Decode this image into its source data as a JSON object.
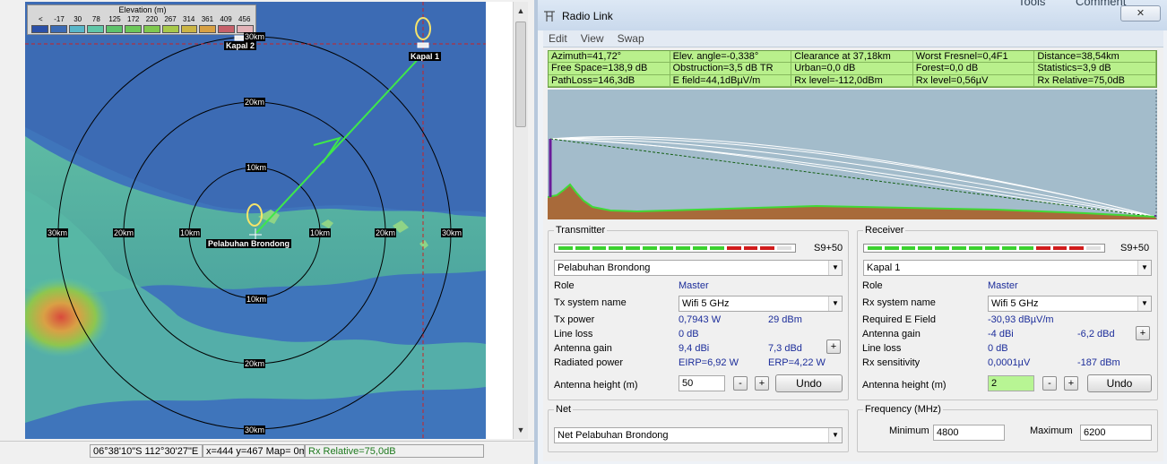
{
  "map": {
    "legend": {
      "title": "Elevation (m)",
      "ticks": [
        "<",
        "-17",
        "30",
        "78",
        "125",
        "172",
        "220",
        "267",
        "314",
        "361",
        "409",
        "456"
      ],
      "colors": [
        "#2b50a8",
        "#3c6bb4",
        "#58b7c9",
        "#5fc7a8",
        "#5dc36b",
        "#6cc859",
        "#7fc94e",
        "#a7c94a",
        "#cbb545",
        "#d8a043",
        "#c7606a",
        "#e4b3b8"
      ]
    },
    "range_labels": {
      "top_30": "30km",
      "top_20": "20km",
      "top_10": "10km",
      "bottom_10": "10km",
      "bottom_20": "20km",
      "bottom_30": "30km",
      "left_30": "30km",
      "left_20": "20km",
      "left_10": "10km",
      "right_10": "10km",
      "right_20": "20km",
      "right_30": "30km"
    },
    "stations": {
      "tx": "Pelabuhan Brondong",
      "rx": "Kapal 1",
      "other": "Kapal 2"
    },
    "colors": {
      "sea": "#3c6bb4",
      "link": "#3ee84a",
      "crosshair": "#cc2222"
    }
  },
  "status_bar": {
    "coords": "06°38'10\"S  112°30'27\"E",
    "xy": "x=444 y=467 Map= 0m",
    "rx_relative": "Rx Relative=75,0dB"
  },
  "background_text": {
    "tools": "Tools",
    "comment": "Comment"
  },
  "window": {
    "title": "Radio Link",
    "close": "✕",
    "menu": [
      "Edit",
      "View",
      "Swap"
    ]
  },
  "info": [
    "Azimuth=41,72°",
    "Elev. angle=-0,338°",
    "Clearance at 37,18km",
    "Worst Fresnel=0,4F1",
    "Distance=38,54km",
    "Free Space=138,9 dB",
    "Obstruction=3,5 dB TR",
    "Urban=0,0 dB",
    "Forest=0,0 dB",
    "Statistics=3,9 dB",
    "PathLoss=146,3dB",
    "E field=44,1dBµV/m",
    "Rx level=-112,0dBm",
    "Rx level=0,56µV",
    "Rx Relative=75,0dB"
  ],
  "profile_colors": {
    "sky": "#a3bccb",
    "terrain": "#a86a3a",
    "edge": "#41d936",
    "fresnel": "#ffffff",
    "los": "#145f14",
    "antenna": "#6a1b9a"
  },
  "transmitter": {
    "title": "Transmitter",
    "signal": "S9+50",
    "signal_level": 0.92,
    "site": "Pelabuhan Brondong",
    "rows": {
      "role_label": "Role",
      "role_value": "Master",
      "system_label": "Tx system name",
      "system_value": "Wifi 5 GHz",
      "power_label": "Tx power",
      "power_w": "0,7943 W",
      "power_dbm": "29 dBm",
      "loss_label": "Line loss",
      "loss_value": "0 dB",
      "gain_label": "Antenna gain",
      "gain_dbi": "9,4 dBi",
      "gain_dbd": "7,3 dBd",
      "radiated_label": "Radiated power",
      "eirp": "EIRP=6,92 W",
      "erp": "ERP=4,22 W",
      "height_label": "Antenna height (m)",
      "height_value": "50"
    },
    "plus": "+",
    "minus": "-",
    "undo": "Undo"
  },
  "receiver": {
    "title": "Receiver",
    "signal": "S9+50",
    "signal_level": 0.92,
    "site": "Kapal 1",
    "rows": {
      "role_label": "Role",
      "role_value": "Master",
      "system_label": "Rx system name",
      "system_value": "Wifi 5 GHz",
      "field_label": "Required E Field",
      "field_value": "-30,93 dBµV/m",
      "gain_label": "Antenna gain",
      "gain_dbi": "-4 dBi",
      "gain_dbd": "-6,2 dBd",
      "loss_label": "Line loss",
      "loss_value": "0 dB",
      "sens_label": "Rx sensitivity",
      "sens_uv": "0,0001µV",
      "sens_dbm": "-187 dBm",
      "height_label": "Antenna height (m)",
      "height_value": "2"
    },
    "plus": "+",
    "minus": "-",
    "undo": "Undo"
  },
  "net": {
    "title": "Net",
    "value": "Net Pelabuhan Brondong"
  },
  "frequency": {
    "title": "Frequency (MHz)",
    "min_label": "Minimum",
    "min_value": "4800",
    "max_label": "Maximum",
    "max_value": "6200"
  }
}
